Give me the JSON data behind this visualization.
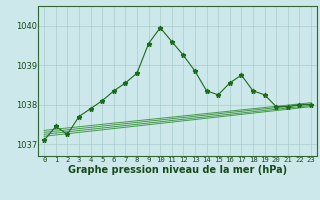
{
  "background_color": "#cce8ea",
  "grid_color": "#aacccc",
  "line_color_main": "#1a6b1a",
  "line_color_smooth": "#2d8c2d",
  "xlabel": "Graphe pression niveau de la mer (hPa)",
  "xlabel_fontsize": 7,
  "tick_fontsize": 6,
  "ylim": [
    1036.7,
    1040.5
  ],
  "yticks": [
    1037,
    1038,
    1039,
    1040
  ],
  "xlim": [
    -0.5,
    23.5
  ],
  "xticks": [
    0,
    1,
    2,
    3,
    4,
    5,
    6,
    7,
    8,
    9,
    10,
    11,
    12,
    13,
    14,
    15,
    16,
    17,
    18,
    19,
    20,
    21,
    22,
    23
  ],
  "series_main": {
    "x": [
      0,
      1,
      2,
      3,
      4,
      5,
      6,
      7,
      8,
      9,
      10,
      11,
      12,
      13,
      14,
      15,
      16,
      17,
      18,
      19,
      20,
      21,
      22,
      23
    ],
    "y": [
      1037.1,
      1037.45,
      1037.25,
      1037.7,
      1037.9,
      1038.1,
      1038.35,
      1038.55,
      1038.8,
      1039.55,
      1039.95,
      1039.6,
      1039.25,
      1038.85,
      1038.35,
      1038.25,
      1038.55,
      1038.75,
      1038.35,
      1038.25,
      1037.95,
      1037.95,
      1038.0,
      1038.0
    ]
  },
  "series_smooth1": {
    "x": [
      0,
      23
    ],
    "y": [
      1037.35,
      1038.05
    ]
  },
  "series_smooth2": {
    "x": [
      0,
      23
    ],
    "y": [
      1037.3,
      1038.02
    ]
  },
  "series_smooth3": {
    "x": [
      0,
      23
    ],
    "y": [
      1037.25,
      1037.98
    ]
  },
  "series_smooth4": {
    "x": [
      0,
      23
    ],
    "y": [
      1037.2,
      1037.95
    ]
  }
}
